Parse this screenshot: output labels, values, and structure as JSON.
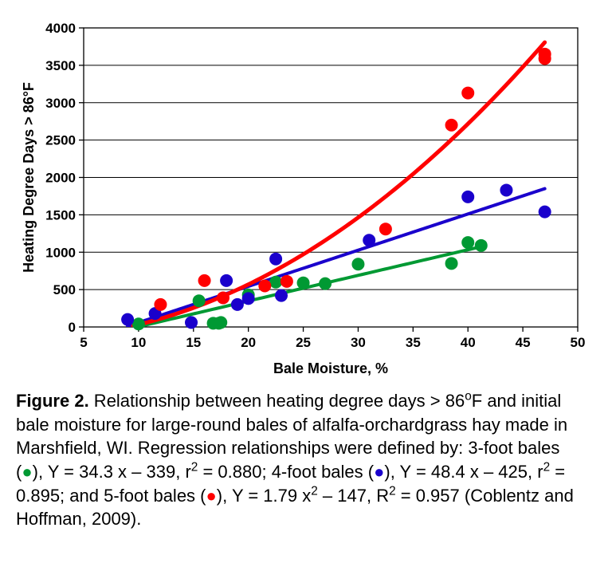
{
  "chart": {
    "type": "scatter-with-regression",
    "background_color": "#ffffff",
    "plot_border_color": "#000000",
    "grid_color": "#000000",
    "grid_width": 0.9,
    "tick_fontsize": 17,
    "tick_color": "#000000",
    "axis_label_fontsize": 18,
    "axis_label_color": "#000000",
    "axis_label_weight": "bold",
    "x": {
      "label": "Bale Moisture, %",
      "min": 5,
      "max": 50,
      "ticks": [
        5,
        10,
        15,
        20,
        25,
        30,
        35,
        40,
        45,
        50
      ]
    },
    "y": {
      "label": "Heating Degree Days > 86°F",
      "min": 0,
      "max": 4000,
      "ticks": [
        0,
        500,
        1000,
        1500,
        2000,
        2500,
        3000,
        3500,
        4000
      ]
    },
    "series": [
      {
        "name": "3-foot bales",
        "marker_color": "#009933",
        "line_color": "#009933",
        "line_width": 4,
        "marker_radius": 8,
        "fit": {
          "type": "linear",
          "a": 34.3,
          "b": -339,
          "x0": 9.0,
          "x1": 41.0
        },
        "points": [
          [
            10.0,
            40
          ],
          [
            15.5,
            350
          ],
          [
            16.8,
            50
          ],
          [
            17.3,
            50
          ],
          [
            17.5,
            60
          ],
          [
            20.0,
            430
          ],
          [
            22.5,
            600
          ],
          [
            25.0,
            590
          ],
          [
            27.0,
            580
          ],
          [
            30.0,
            840
          ],
          [
            38.5,
            850
          ],
          [
            40.0,
            1130
          ],
          [
            41.2,
            1090
          ]
        ]
      },
      {
        "name": "4-foot bales",
        "marker_color": "#1a00cc",
        "line_color": "#1a00cc",
        "line_width": 4,
        "marker_radius": 8,
        "fit": {
          "type": "linear",
          "a": 48.4,
          "b": -425,
          "x0": 9.0,
          "x1": 47.0
        },
        "points": [
          [
            9.0,
            100
          ],
          [
            11.5,
            180
          ],
          [
            14.8,
            60
          ],
          [
            18.0,
            620
          ],
          [
            19.0,
            300
          ],
          [
            20.0,
            380
          ],
          [
            22.5,
            910
          ],
          [
            23.0,
            420
          ],
          [
            31.0,
            1160
          ],
          [
            40.0,
            1740
          ],
          [
            43.5,
            1830
          ],
          [
            47.0,
            1540
          ]
        ]
      },
      {
        "name": "5-foot bales",
        "marker_color": "#ff0000",
        "line_color": "#ff0000",
        "line_width": 5,
        "marker_radius": 8,
        "fit": {
          "type": "quadratic",
          "a": 1.79,
          "b": 0,
          "c": -147,
          "x0": 9.5,
          "x1": 47.0
        },
        "points": [
          [
            12.0,
            300
          ],
          [
            16.0,
            620
          ],
          [
            17.7,
            390
          ],
          [
            21.5,
            550
          ],
          [
            23.5,
            610
          ],
          [
            32.5,
            1310
          ],
          [
            38.5,
            2700
          ],
          [
            40.0,
            3130
          ],
          [
            47.0,
            3590
          ],
          [
            47.0,
            3650
          ]
        ]
      }
    ]
  },
  "caption": {
    "label": "Figure 2.",
    "text_1": " Relationship between heating degree days > 86",
    "deg": "o",
    "text_1b": "F and initial bale moisture for large-round bales of alfalfa-orchardgrass hay made in Marshfield, WI. Regression relationships were defined by: 3-foot bales (",
    "dot3_color": "#009933",
    "text_2": "), Y = 34.3 x – 339, r",
    "sq": "2",
    "text_3": " = 0.880; 4-foot bales (",
    "dot4_color": "#1a00cc",
    "text_4": "), Y = 48.4 x – 425, r",
    "text_5": " = 0.895; and 5-foot bales (",
    "dot5_color": "#ff0000",
    "text_6": "), Y = 1.79 x",
    "text_7": " – 147, R",
    "text_8": " = 0.957 (Coblentz and Hoffman, 2009)."
  }
}
